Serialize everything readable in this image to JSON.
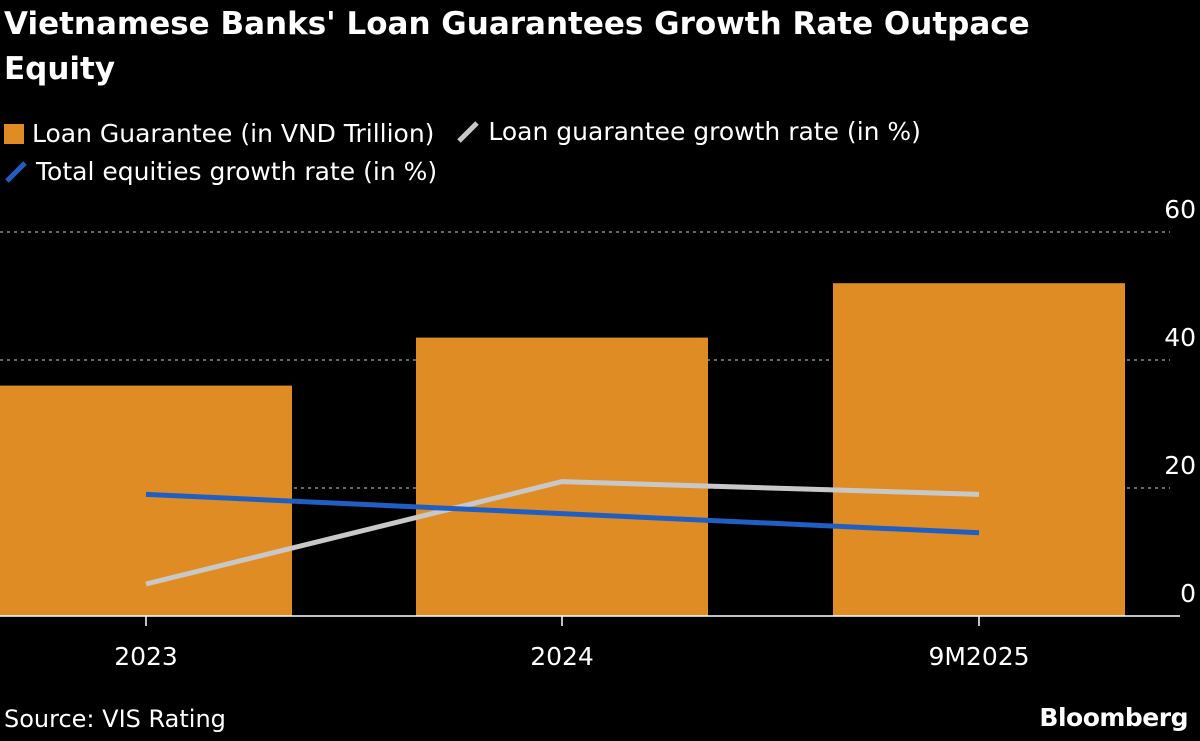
{
  "chart_data": {
    "type": "bar",
    "title": "Vietnamese Banks' Loan Guarantees Growth Rate Outpace Equity",
    "categories": [
      "2023",
      "2024",
      "9M2025"
    ],
    "series": [
      {
        "name": "Loan Guarantee (in VND Trillion)",
        "kind": "bar",
        "color": "#e08c24",
        "values": [
          36,
          43.5,
          52
        ]
      },
      {
        "name": "Loan guarantee growth rate (in %)",
        "kind": "line",
        "color": "#c8c8c8",
        "values": [
          5,
          21,
          19
        ]
      },
      {
        "name": "Total equities growth rate (in %)",
        "kind": "line",
        "color": "#1f5fc4",
        "values": [
          19,
          16,
          13
        ]
      }
    ],
    "y_ticks": [
      "0",
      "20",
      "40",
      "60"
    ],
    "ylim": [
      0,
      60
    ],
    "grid": true,
    "y_axis_side": "right"
  },
  "footer": {
    "source": "Source: VIS Rating",
    "brand": "Bloomberg"
  }
}
